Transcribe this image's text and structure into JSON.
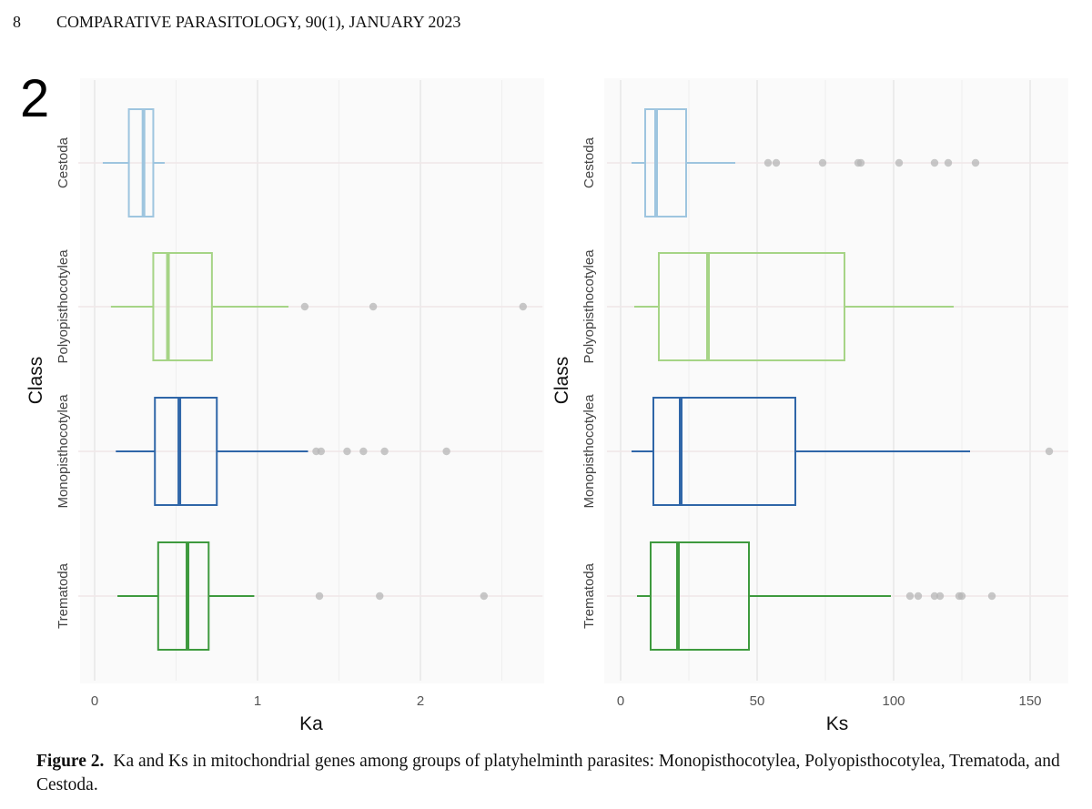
{
  "header": {
    "page_number": "8",
    "journal": "COMPARATIVE PARASITOLOGY, 90(1), JANUARY 2023"
  },
  "figure": {
    "panel_label": "2",
    "caption_label": "Figure 2.",
    "caption_text": "Ka and Ks in mitochondrial genes among groups of platyhelminth parasites: Monopisthocotylea, Polyopistho­cotylea, Trematoda, and Cestoda."
  },
  "colors": {
    "Cestoda": "#9ec5df",
    "Polyopisthocotylea": "#a6d486",
    "Monopisthocotylea": "#2f66a8",
    "Trematoda": "#3e9a3e",
    "outlier": "#b5b5b5",
    "grid": "#e6e6e6",
    "panel_bg": "#fafafa"
  },
  "chart_data": [
    {
      "type": "boxplot",
      "title": "",
      "xlabel": "Ka",
      "ylabel": "Class",
      "xlim": [
        -0.1,
        2.75
      ],
      "xticks": [
        0,
        1,
        2
      ],
      "xtick_labels": [
        "0",
        "1",
        "2"
      ],
      "categories": [
        "Cestoda",
        "Polyopisthocotylea",
        "Monopisthocotylea",
        "Trematoda"
      ],
      "series": [
        {
          "name": "Cestoda",
          "whisker_low": 0.05,
          "q1": 0.21,
          "median": 0.3,
          "q3": 0.36,
          "whisker_high": 0.43,
          "outliers": []
        },
        {
          "name": "Polyopisthocotylea",
          "whisker_low": 0.1,
          "q1": 0.36,
          "median": 0.45,
          "q3": 0.72,
          "whisker_high": 1.19,
          "outliers": [
            1.29,
            1.71,
            2.63
          ]
        },
        {
          "name": "Monopisthocotylea",
          "whisker_low": 0.13,
          "q1": 0.37,
          "median": 0.52,
          "q3": 0.75,
          "whisker_high": 1.31,
          "outliers": [
            1.36,
            1.39,
            1.55,
            1.65,
            1.78,
            2.16
          ]
        },
        {
          "name": "Trematoda",
          "whisker_low": 0.14,
          "q1": 0.39,
          "median": 0.57,
          "q3": 0.7,
          "whisker_high": 0.98,
          "outliers": [
            1.38,
            1.75,
            2.39
          ]
        }
      ]
    },
    {
      "type": "boxplot",
      "title": "",
      "xlabel": "Ks",
      "ylabel": "Class",
      "xlim": [
        -5,
        164
      ],
      "xticks": [
        0,
        50,
        100,
        150
      ],
      "xtick_labels": [
        "0",
        "50",
        "100",
        "150"
      ],
      "categories": [
        "Cestoda",
        "Polyopisthocotylea",
        "Monopisthocotylea",
        "Trematoda"
      ],
      "series": [
        {
          "name": "Cestoda",
          "whisker_low": 4,
          "q1": 9,
          "median": 13,
          "q3": 24,
          "whisker_high": 42,
          "outliers": [
            54,
            57,
            74,
            87,
            88,
            102,
            115,
            120,
            130
          ]
        },
        {
          "name": "Polyopisthocotylea",
          "whisker_low": 5,
          "q1": 14,
          "median": 32,
          "q3": 82,
          "whisker_high": 122,
          "outliers": []
        },
        {
          "name": "Monopisthocotylea",
          "whisker_low": 4,
          "q1": 12,
          "median": 22,
          "q3": 64,
          "whisker_high": 128,
          "outliers": [
            157
          ]
        },
        {
          "name": "Trematoda",
          "whisker_low": 6,
          "q1": 11,
          "median": 21,
          "q3": 47,
          "whisker_high": 99,
          "outliers": [
            106,
            109,
            115,
            117,
            124,
            125,
            136
          ]
        }
      ]
    }
  ]
}
